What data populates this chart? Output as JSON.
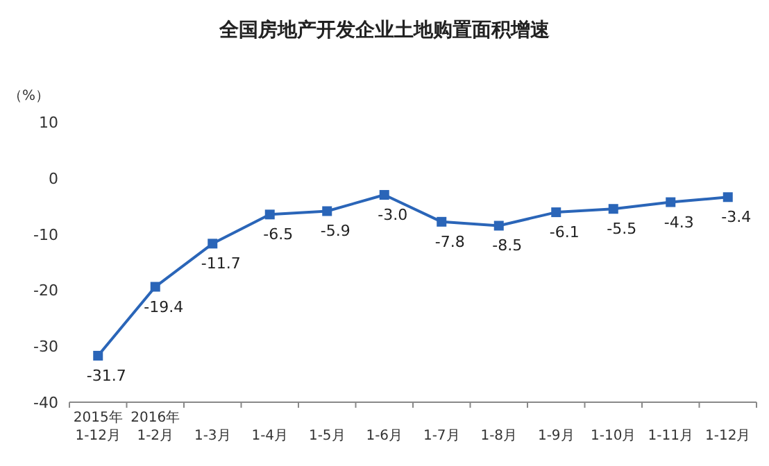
{
  "chart_data": {
    "type": "line",
    "title": "全国房地产开发企业土地购置面积增速",
    "ylabel": "（%）",
    "categories": [
      "2015年\n1-12月",
      "2016年\n1-2月",
      "1-3月",
      "1-4月",
      "1-5月",
      "1-6月",
      "1-7月",
      "1-8月",
      "1-9月",
      "1-10月",
      "1-11月",
      "1-12月"
    ],
    "series": [
      {
        "color": "#2a65b8",
        "values": [
          -31.7,
          -19.4,
          -11.7,
          -6.5,
          -5.9,
          -3.0,
          -7.8,
          -8.5,
          -6.1,
          -5.5,
          -4.3,
          -3.4
        ],
        "value_labels": [
          "-31.7",
          "-19.4",
          "-11.7",
          "-6.5",
          "-5.9",
          "-3.0",
          "-7.8",
          "-8.5",
          "-6.1",
          "-5.5",
          "-4.3",
          "-3.4"
        ]
      }
    ],
    "ylim": [
      -40,
      10
    ],
    "yticks": [
      -40,
      -30,
      -20,
      -10,
      0,
      10
    ],
    "marker": "square"
  }
}
